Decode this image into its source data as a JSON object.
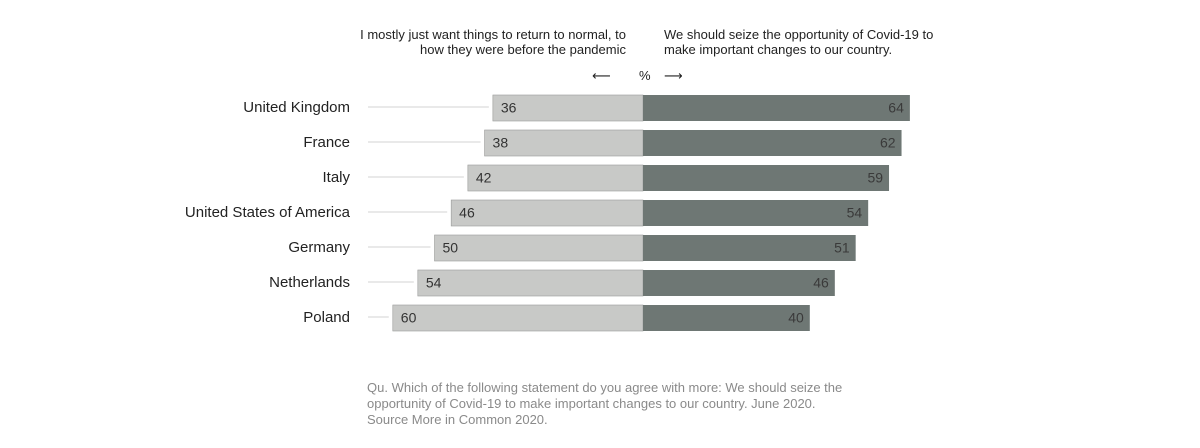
{
  "headers": {
    "left": [
      "I mostly just want things to return to normal, to",
      "how they were before the pandemic"
    ],
    "right": [
      "We should seize the opportunity of Covid-19 to",
      "make important changes to our country."
    ]
  },
  "axis": {
    "arrow_left": "⟵",
    "unit": "%",
    "arrow_right": "⟶"
  },
  "colors": {
    "left_bar": "#c8c9c7",
    "right_bar": "#6e7774",
    "leader_line": "#d3d3d3"
  },
  "chart_data": {
    "type": "bar",
    "orientation": "diverging-horizontal",
    "categories": [
      "United Kingdom",
      "France",
      "Italy",
      "United States of America",
      "Germany",
      "Netherlands",
      "Poland"
    ],
    "series": [
      {
        "values": [
          36,
          38,
          42,
          46,
          50,
          54,
          60
        ]
      },
      {
        "values": [
          64,
          62,
          59,
          54,
          51,
          46,
          40
        ]
      }
    ],
    "unit": "%"
  },
  "footnote": [
    "Qu. Which of the following statement do you agree with more: We should seize the",
    "opportunity of Covid-19 to make important changes to our country. June 2020.",
    "Source More in Common 2020."
  ]
}
